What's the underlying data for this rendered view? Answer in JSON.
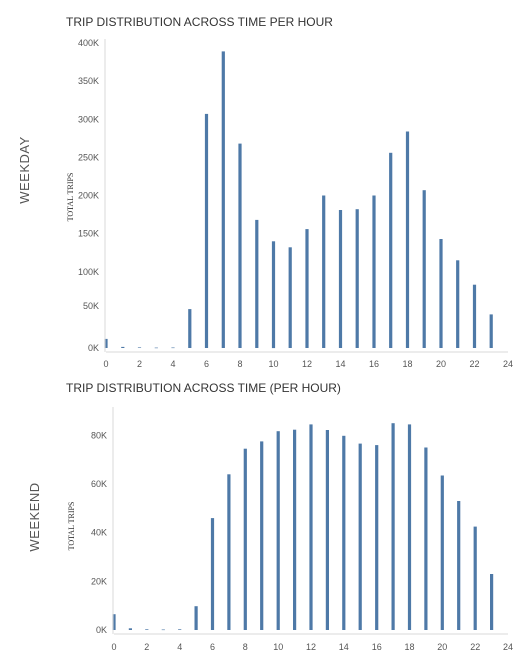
{
  "colors": {
    "bar": "#4e79a7",
    "axis": "#d8d8d8",
    "text": "#555555"
  },
  "chart_data": [
    {
      "type": "bar",
      "title": "TRIP DISTRIBUTION ACROSS TIME PER HOUR",
      "side_label": "WEEKDAY",
      "ylabel": "TOTAL TRIPS",
      "xlabel": "",
      "x": [
        0,
        1,
        2,
        3,
        4,
        5,
        6,
        7,
        8,
        9,
        10,
        11,
        12,
        13,
        14,
        15,
        16,
        17,
        18,
        19,
        20,
        21,
        22,
        23
      ],
      "values": [
        12000,
        1500,
        800,
        500,
        700,
        51000,
        307000,
        389000,
        268000,
        168000,
        140000,
        132000,
        156000,
        200000,
        181000,
        182000,
        200000,
        256000,
        284000,
        207000,
        143000,
        115000,
        83000,
        44000
      ],
      "xlim": [
        0,
        24
      ],
      "ylim": [
        0,
        400000
      ],
      "xticks": [
        0,
        2,
        4,
        6,
        8,
        10,
        12,
        14,
        16,
        18,
        20,
        22,
        24
      ],
      "xtick_labels": [
        "0",
        "2",
        "4",
        "6",
        "8",
        "10",
        "12",
        "14",
        "16",
        "18",
        "20",
        "22",
        "24"
      ],
      "yticks": [
        0,
        50000,
        100000,
        150000,
        200000,
        250000,
        300000,
        350000,
        400000
      ],
      "ytick_labels": [
        "0K",
        "50K",
        "100K",
        "150K",
        "200K",
        "250K",
        "300K",
        "350K",
        "400K"
      ],
      "grid": false
    },
    {
      "type": "bar",
      "title": "TRIP DISTRIBUTION ACROSS TIME (PER HOUR)",
      "side_label": "WEEKEND",
      "ylabel": "TOTAL TRIPS",
      "xlabel": "",
      "x": [
        0,
        1,
        2,
        3,
        4,
        5,
        6,
        7,
        8,
        9,
        10,
        11,
        12,
        13,
        14,
        15,
        16,
        17,
        18,
        19,
        20,
        21,
        22,
        23
      ],
      "values": [
        6500,
        700,
        300,
        200,
        300,
        9800,
        46000,
        64000,
        74500,
        77500,
        81700,
        82300,
        84500,
        82200,
        79800,
        76600,
        76000,
        85000,
        84500,
        75000,
        63500,
        53000,
        42500,
        23000
      ],
      "xlim": [
        0,
        24
      ],
      "ylim": [
        0,
        90000
      ],
      "xticks": [
        0,
        2,
        4,
        6,
        8,
        10,
        12,
        14,
        16,
        18,
        20,
        22,
        24
      ],
      "xtick_labels": [
        "0",
        "2",
        "4",
        "6",
        "8",
        "10",
        "12",
        "14",
        "16",
        "18",
        "20",
        "22",
        "24"
      ],
      "yticks": [
        0,
        20000,
        40000,
        60000,
        80000
      ],
      "ytick_labels": [
        "0K",
        "20K",
        "40K",
        "60K",
        "80K"
      ],
      "grid": false
    }
  ]
}
